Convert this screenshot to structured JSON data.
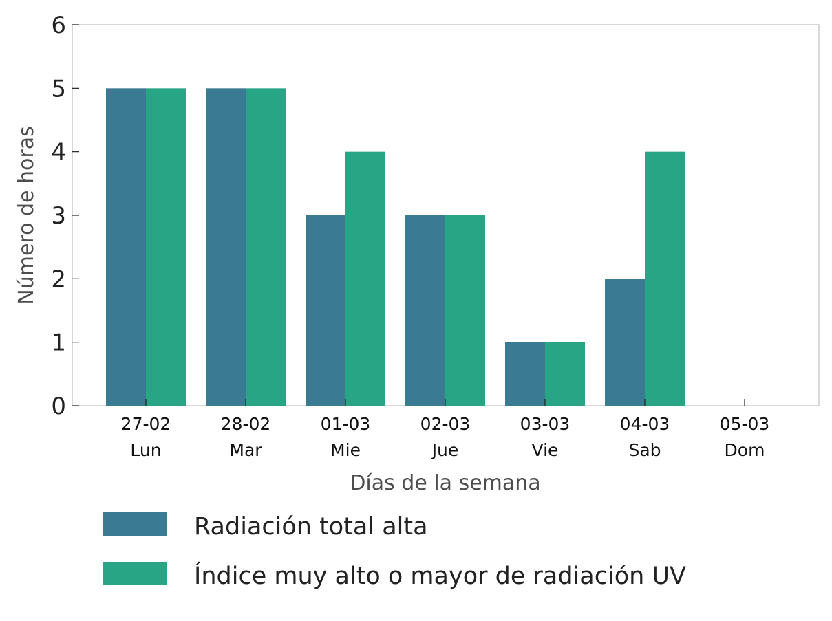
{
  "chart_data": {
    "type": "bar",
    "categories": [
      [
        "27-02",
        "Lun"
      ],
      [
        "28-02",
        "Mar"
      ],
      [
        "01-03",
        "Mie"
      ],
      [
        "02-03",
        "Jue"
      ],
      [
        "03-03",
        "Vie"
      ],
      [
        "04-03",
        "Sab"
      ],
      [
        "05-03",
        "Dom"
      ]
    ],
    "series": [
      {
        "name": "Radiación total alta",
        "values": [
          5,
          5,
          3,
          3,
          1,
          2,
          0
        ],
        "color": "#3a7a93"
      },
      {
        "name": "Índice muy alto o mayor de radiación UV",
        "values": [
          5,
          5,
          4,
          3,
          1,
          4,
          0
        ],
        "color": "#28a584"
      }
    ],
    "xlabel": "Días de la semana",
    "ylabel": "Número de horas",
    "ylim": [
      0,
      6
    ],
    "yticks": [
      "0",
      "1",
      "2",
      "3",
      "4",
      "5",
      "6"
    ],
    "grid": false,
    "legend_position": "bottom",
    "axis_color": "#cccccc"
  }
}
